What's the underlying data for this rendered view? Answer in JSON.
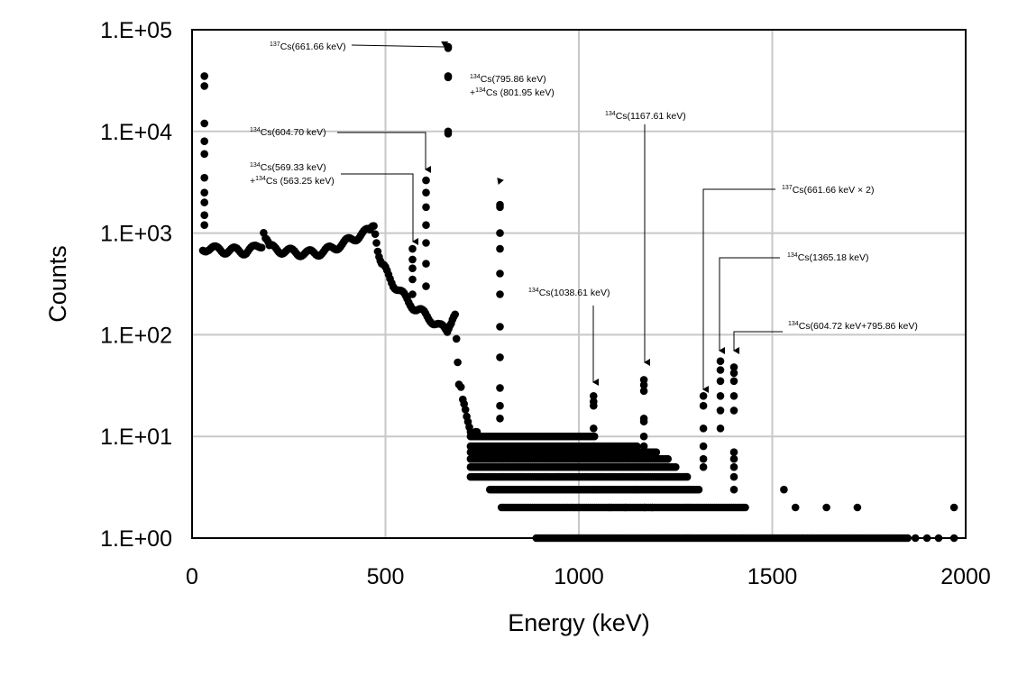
{
  "chart_data": {
    "type": "scatter",
    "title": "",
    "xlabel": "Energy (keV)",
    "ylabel": "Counts",
    "xlim": [
      0,
      2000
    ],
    "ylim": [
      1,
      100000
    ],
    "yscale": "log",
    "grid": true,
    "x_ticks": [
      "0",
      "500",
      "1000",
      "1500",
      "2000"
    ],
    "y_ticks": [
      "1.E+00",
      "1.E+01",
      "1.E+02",
      "1.E+03",
      "1.E+04",
      "1.E+05"
    ],
    "marker_color": "#000000",
    "grid_color": "#c8c8c8",
    "continuum": [
      [
        28,
        700
      ],
      [
        40,
        720
      ],
      [
        60,
        690
      ],
      [
        80,
        680
      ],
      [
        100,
        675
      ],
      [
        120,
        670
      ],
      [
        140,
        665
      ],
      [
        160,
        700
      ],
      [
        180,
        780
      ],
      [
        185,
        980
      ],
      [
        190,
        850
      ],
      [
        200,
        720
      ],
      [
        220,
        690
      ],
      [
        240,
        670
      ],
      [
        260,
        650
      ],
      [
        280,
        640
      ],
      [
        300,
        630
      ],
      [
        320,
        640
      ],
      [
        340,
        660
      ],
      [
        360,
        700
      ],
      [
        380,
        760
      ],
      [
        400,
        820
      ],
      [
        420,
        900
      ],
      [
        440,
        980
      ],
      [
        460,
        1060
      ],
      [
        470,
        1100
      ],
      [
        480,
        700
      ],
      [
        490,
        520
      ],
      [
        500,
        430
      ],
      [
        520,
        320
      ],
      [
        540,
        260
      ],
      [
        560,
        210
      ],
      [
        580,
        180
      ],
      [
        600,
        160
      ],
      [
        620,
        140
      ],
      [
        640,
        120
      ],
      [
        660,
        110
      ],
      [
        670,
        120
      ],
      [
        680,
        160
      ],
      [
        690,
        35
      ],
      [
        695,
        30
      ],
      [
        700,
        22
      ],
      [
        710,
        15
      ],
      [
        720,
        12
      ],
      [
        730,
        11
      ],
      [
        740,
        10
      ]
    ],
    "floor_levels": [
      {
        "y": 10,
        "x_from": 720,
        "x_to": 1040
      },
      {
        "y": 8,
        "x_from": 720,
        "x_to": 1150
      },
      {
        "y": 7,
        "x_from": 720,
        "x_to": 1200
      },
      {
        "y": 6,
        "x_from": 720,
        "x_to": 1230
      },
      {
        "y": 5,
        "x_from": 720,
        "x_to": 1250
      },
      {
        "y": 4,
        "x_from": 720,
        "x_to": 1280
      },
      {
        "y": 3,
        "x_from": 770,
        "x_to": 1310
      },
      {
        "y": 2,
        "x_from": 800,
        "x_to": 1430
      },
      {
        "y": 1,
        "x_from": 890,
        "x_to": 1850
      }
    ],
    "peaks": [
      {
        "x": 32,
        "values": [
          35000,
          28000,
          12000,
          8000,
          6000,
          3500,
          2500,
          2000,
          1500,
          1200
        ]
      },
      {
        "x": 570,
        "values": [
          700,
          550,
          450,
          350,
          250
        ]
      },
      {
        "x": 605,
        "values": [
          3300,
          2500,
          1800,
          1200,
          800,
          500,
          300
        ]
      },
      {
        "x": 662,
        "values": [
          68000,
          66000,
          35000,
          34000,
          10000,
          9500
        ]
      },
      {
        "x": 796,
        "values": [
          1900,
          1800,
          1000,
          700,
          400,
          250,
          120,
          60,
          30,
          20,
          15
        ]
      },
      {
        "x": 1038,
        "values": [
          25,
          22,
          20,
          12,
          8
        ]
      },
      {
        "x": 1168,
        "values": [
          36,
          32,
          28,
          15,
          14,
          10,
          8
        ]
      },
      {
        "x": 1322,
        "values": [
          25,
          20,
          12,
          8,
          6,
          5
        ]
      },
      {
        "x": 1366,
        "values": [
          55,
          45,
          35,
          25,
          18,
          12
        ]
      },
      {
        "x": 1401,
        "values": [
          48,
          42,
          35,
          25,
          18,
          7,
          6,
          5,
          4,
          3
        ]
      }
    ],
    "scattered_points": [
      [
        1040,
        3
      ],
      [
        1080,
        2
      ],
      [
        1120,
        2
      ],
      [
        1150,
        3
      ],
      [
        1170,
        2
      ],
      [
        1190,
        2
      ],
      [
        1530,
        3
      ],
      [
        1560,
        2
      ],
      [
        1640,
        2
      ],
      [
        1720,
        2
      ],
      [
        1970,
        2
      ],
      [
        1870,
        1
      ],
      [
        1900,
        1
      ],
      [
        1930,
        1
      ],
      [
        1970,
        1
      ]
    ],
    "annotations": [
      {
        "sup": "137",
        "text": "Cs(661.66 keV)",
        "x": 662,
        "y": 68000
      },
      {
        "sup": "134",
        "text": "Cs(795.86 keV)",
        "line2_sup": "134",
        "line2_text": "Cs (801.95 keV)",
        "line2_prefix": "+",
        "x": 796,
        "y": 1900
      },
      {
        "sup": "134",
        "text": "Cs(604.70 keV)",
        "x": 605,
        "y": 3300
      },
      {
        "sup": "134",
        "text": "Cs(569.33 keV)",
        "line2_sup": "134",
        "line2_text": "Cs (563.25 keV)",
        "line2_prefix": "+",
        "x": 570,
        "y": 700
      },
      {
        "sup": "134",
        "text": "Cs(1167.61 keV)",
        "x": 1168,
        "y": 36
      },
      {
        "sup": "137",
        "text": "Cs(661.66 keV × 2)",
        "x": 1322,
        "y": 25
      },
      {
        "sup": "134",
        "text": "Cs(1365.18 keV)",
        "x": 1366,
        "y": 55
      },
      {
        "sup": "134",
        "text": "Cs(1038.61 keV)",
        "x": 1038,
        "y": 25
      },
      {
        "sup": "134",
        "text": "Cs(604.72 keV+795.86 keV)",
        "x": 1401,
        "y": 48
      }
    ]
  }
}
